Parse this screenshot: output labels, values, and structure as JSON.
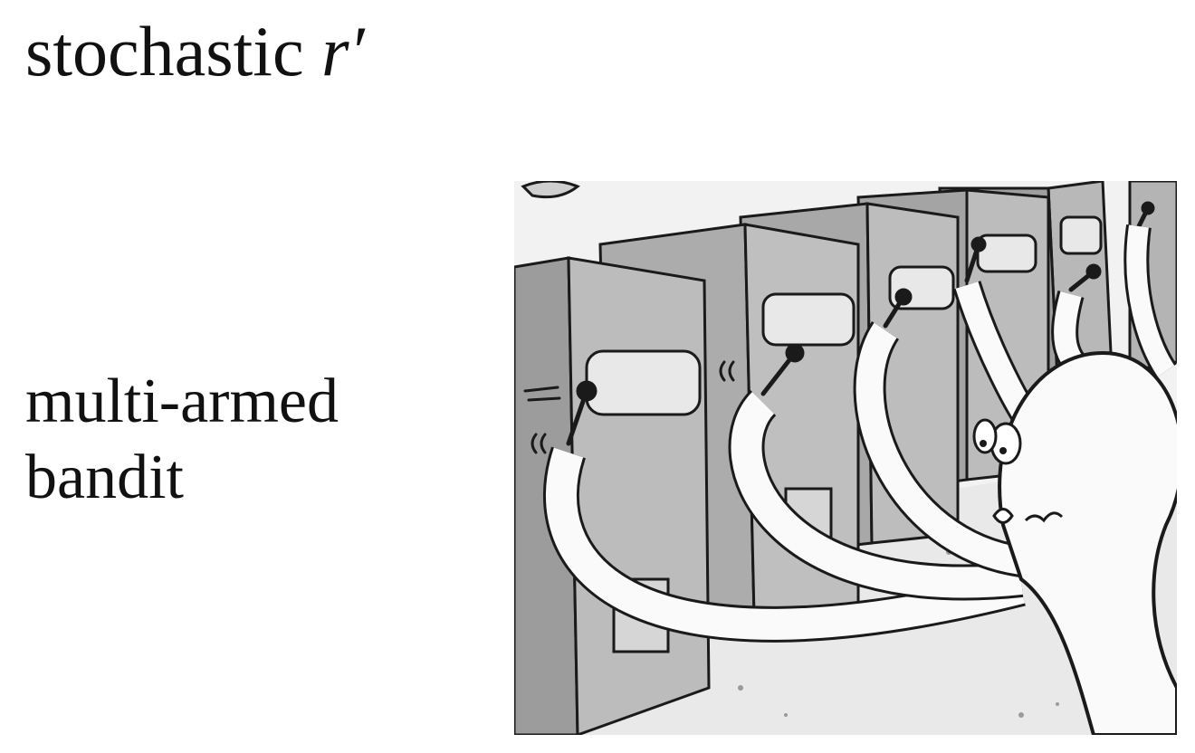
{
  "slide": {
    "title_text": "stochastic ",
    "title_math": "r′",
    "label_line1": "multi-armed",
    "label_line2": "bandit"
  },
  "illustration": {
    "subject": "octopus pulling the levers of a row of slot machines",
    "machine_count": 6,
    "colors": {
      "machine": "#b8b8b8",
      "machine_side": "#9a9a9a",
      "outline": "#1a1a1a",
      "octopus": "#fafafa",
      "floor": "#ededed"
    }
  }
}
